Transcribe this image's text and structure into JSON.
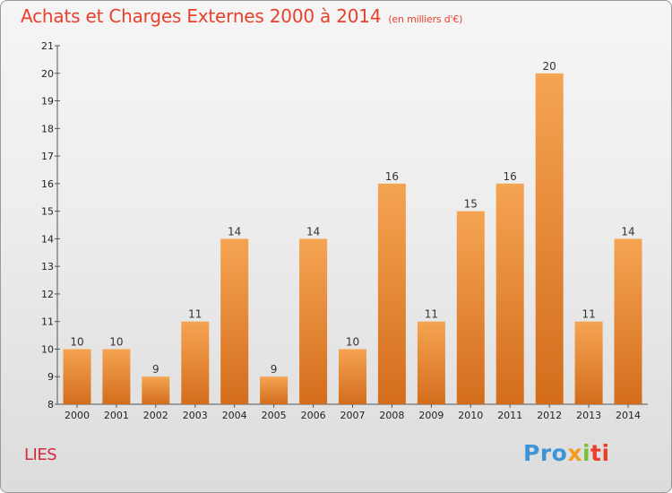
{
  "header": {
    "title": "Achats et Charges Externes 2000 à 2014",
    "subtitle": "(en milliers d'€)"
  },
  "footer": {
    "commune": "LIES",
    "logo_parts": [
      "Pro",
      "x",
      "i",
      "ti"
    ]
  },
  "colors": {
    "title": "#e8402c",
    "bar_top": "#f5a452",
    "bar_bottom": "#d36d1c",
    "axis": "#555555"
  },
  "chart_data": {
    "type": "bar",
    "title": "Achats et Charges Externes 2000 à 2014",
    "subtitle": "(en milliers d'€)",
    "categories": [
      "2000",
      "2001",
      "2002",
      "2003",
      "2004",
      "2005",
      "2006",
      "2007",
      "2008",
      "2009",
      "2010",
      "2011",
      "2012",
      "2013",
      "2014"
    ],
    "values": [
      10,
      10,
      9,
      11,
      14,
      9,
      14,
      10,
      16,
      11,
      15,
      16,
      20,
      11,
      14
    ],
    "ylim": [
      8,
      21
    ],
    "yticks": [
      8,
      9,
      10,
      11,
      12,
      13,
      14,
      15,
      16,
      17,
      18,
      19,
      20,
      21
    ],
    "grid": false,
    "legend": "none"
  }
}
